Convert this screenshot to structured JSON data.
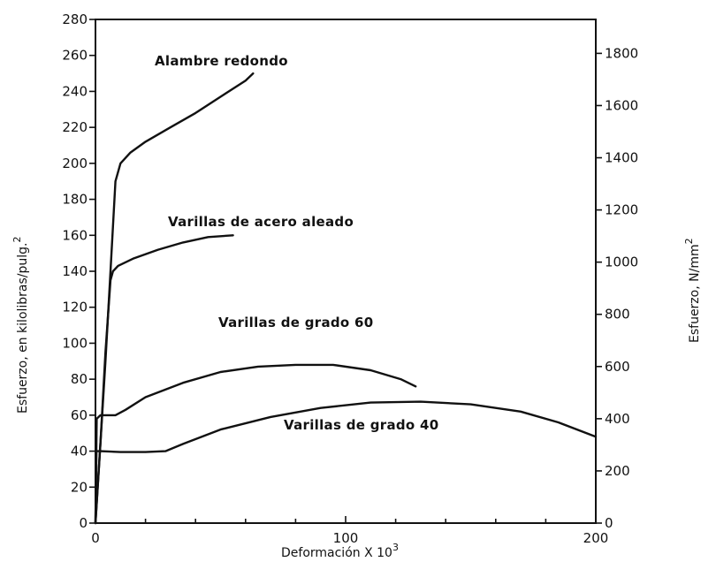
{
  "chart_data": {
    "type": "line",
    "xlabel": "Deformación X 10",
    "xlabel_exp": "3",
    "ylabel_left": "Esfuerzo, en kilolibras/pulg.",
    "ylabel_left_exp": "2",
    "ylabel_right": "Esfuerzo, N/mm",
    "ylabel_right_exp": "2",
    "xlim": [
      0,
      200
    ],
    "ylim_left": [
      0,
      280
    ],
    "ylim_right_equiv": [
      0,
      1930
    ],
    "x_ticks": [
      0,
      100,
      200
    ],
    "x_tick_labels": [
      "0",
      "100",
      "200"
    ],
    "y_left_ticks": [
      0,
      20,
      40,
      60,
      80,
      100,
      120,
      140,
      160,
      180,
      200,
      220,
      240,
      260,
      280
    ],
    "y_left_tick_labels": [
      "0",
      "20",
      "40",
      "60",
      "80",
      "100",
      "120",
      "140",
      "160",
      "180",
      "200",
      "220",
      "240",
      "260",
      "280"
    ],
    "y_right_ticks": [
      0,
      200,
      400,
      600,
      800,
      1000,
      1200,
      1400,
      1600,
      1800
    ],
    "y_right_tick_labels": [
      "0",
      "200",
      "400",
      "600",
      "800",
      "1000",
      "1200",
      "1400",
      "1600",
      "1800"
    ],
    "grid": false,
    "series": [
      {
        "name": "Alambre redondo",
        "points": [
          [
            0,
            0
          ],
          [
            2,
            45
          ],
          [
            4,
            90
          ],
          [
            6,
            140
          ],
          [
            7,
            165
          ],
          [
            8,
            190
          ],
          [
            10,
            200
          ],
          [
            14,
            206
          ],
          [
            20,
            212
          ],
          [
            30,
            220
          ],
          [
            40,
            228
          ],
          [
            50,
            237
          ],
          [
            60,
            246
          ],
          [
            63,
            250
          ]
        ]
      },
      {
        "name": "Varillas de acero aleado",
        "points": [
          [
            0,
            0
          ],
          [
            2,
            45
          ],
          [
            4,
            95
          ],
          [
            6,
            135
          ],
          [
            7,
            140
          ],
          [
            9,
            143
          ],
          [
            15,
            147
          ],
          [
            25,
            152
          ],
          [
            35,
            156
          ],
          [
            45,
            159
          ],
          [
            55,
            160
          ]
        ]
      },
      {
        "name": "Varillas de grado 60",
        "points": [
          [
            0,
            0
          ],
          [
            0.5,
            58
          ],
          [
            2,
            60
          ],
          [
            8,
            60
          ],
          [
            12,
            63
          ],
          [
            20,
            70
          ],
          [
            35,
            78
          ],
          [
            50,
            84
          ],
          [
            65,
            87
          ],
          [
            80,
            88
          ],
          [
            95,
            88
          ],
          [
            110,
            85
          ],
          [
            122,
            80
          ],
          [
            128,
            76
          ]
        ]
      },
      {
        "name": "Varillas de grado 40",
        "points": [
          [
            0,
            0
          ],
          [
            0.4,
            40
          ],
          [
            2,
            40
          ],
          [
            10,
            39.5
          ],
          [
            20,
            39.5
          ],
          [
            28,
            40
          ],
          [
            35,
            44
          ],
          [
            50,
            52
          ],
          [
            70,
            59
          ],
          [
            90,
            64
          ],
          [
            110,
            67
          ],
          [
            130,
            67.5
          ],
          [
            150,
            66
          ],
          [
            170,
            62
          ],
          [
            185,
            56
          ],
          [
            200,
            48
          ]
        ]
      }
    ]
  }
}
